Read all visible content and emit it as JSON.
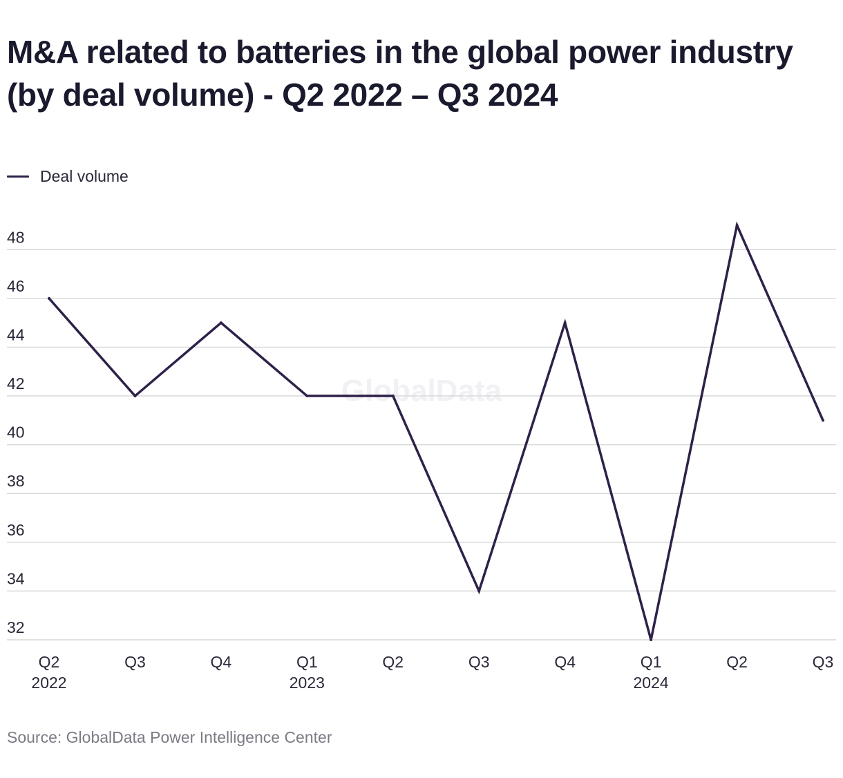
{
  "title": "M&A related to batteries in the global power industry (by deal volume) - Q2 2022 – Q3 2024",
  "source": "Source: GlobalData Power Intelligence Center",
  "watermark": "GlobalData",
  "colors": {
    "line": "#2e2149",
    "grid": "#d9d9d9",
    "text": "#2a2838",
    "muted": "#7b7b85"
  },
  "chart_data": {
    "type": "line",
    "categories": [
      "Q2",
      "Q3",
      "Q4",
      "Q1",
      "Q2",
      "Q3",
      "Q4",
      "Q1",
      "Q2",
      "Q3"
    ],
    "year_labels": [
      "2022",
      "",
      "",
      "2023",
      "",
      "",
      "",
      "2024",
      "",
      ""
    ],
    "series": [
      {
        "name": "Deal volume",
        "values": [
          46,
          42,
          45,
          42,
          42,
          34,
          45,
          32,
          49,
          41
        ]
      }
    ],
    "y_ticks": [
      32,
      34,
      36,
      38,
      40,
      42,
      44,
      46,
      48
    ],
    "ylim": [
      32,
      49
    ],
    "legend": "top-left",
    "grid": true
  }
}
